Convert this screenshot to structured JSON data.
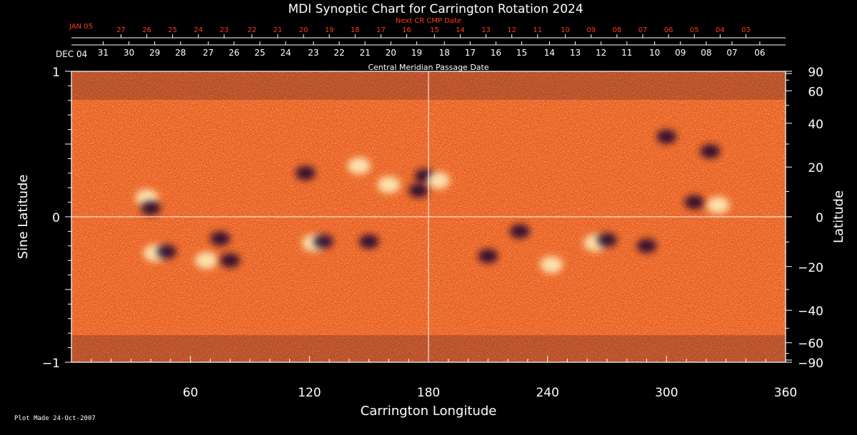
{
  "chart_data": {
    "type": "heatmap",
    "title": "MDI Synoptic Chart for Carrington Rotation 2024",
    "xlabel": "Carrington Longitude",
    "ylabel_left": "Sine Latitude",
    "ylabel_right": "Latitude",
    "xlim": [
      0,
      360
    ],
    "ylim": [
      -1,
      1
    ],
    "x_ticks": [
      60,
      120,
      180,
      240,
      300,
      360
    ],
    "y_ticks_left": [
      {
        "value": 1,
        "label": "1"
      },
      {
        "value": 0,
        "label": "0"
      },
      {
        "value": -1,
        "label": "−1"
      }
    ],
    "y_ticks_right": [
      {
        "deg": 90,
        "label": "90"
      },
      {
        "deg": 60,
        "label": "60"
      },
      {
        "deg": 40,
        "label": "40"
      },
      {
        "deg": 20,
        "label": "20"
      },
      {
        "deg": 0,
        "label": "0"
      },
      {
        "deg": -20,
        "label": "−20"
      },
      {
        "deg": -40,
        "label": "−40"
      },
      {
        "deg": -60,
        "label": "−60"
      },
      {
        "deg": -90,
        "label": "−90"
      }
    ],
    "cmp_axis": {
      "label": "Central Meridian Passage Date",
      "start_label": "DEC 04",
      "dates": [
        {
          "lon": 16,
          "label": "31"
        },
        {
          "lon": 29,
          "label": "30"
        },
        {
          "lon": 42,
          "label": "29"
        },
        {
          "lon": 55,
          "label": "28"
        },
        {
          "lon": 69,
          "label": "27"
        },
        {
          "lon": 82,
          "label": "26"
        },
        {
          "lon": 95,
          "label": "25"
        },
        {
          "lon": 108,
          "label": "24"
        },
        {
          "lon": 122,
          "label": "23"
        },
        {
          "lon": 135,
          "label": "22"
        },
        {
          "lon": 148,
          "label": "21"
        },
        {
          "lon": 161,
          "label": "20"
        },
        {
          "lon": 174,
          "label": "19"
        },
        {
          "lon": 188,
          "label": "18"
        },
        {
          "lon": 201,
          "label": "17"
        },
        {
          "lon": 214,
          "label": "16"
        },
        {
          "lon": 227,
          "label": "15"
        },
        {
          "lon": 241,
          "label": "14"
        },
        {
          "lon": 254,
          "label": "13"
        },
        {
          "lon": 267,
          "label": "12"
        },
        {
          "lon": 280,
          "label": "11"
        },
        {
          "lon": 294,
          "label": "10"
        },
        {
          "lon": 307,
          "label": "09"
        },
        {
          "lon": 320,
          "label": "08"
        },
        {
          "lon": 333,
          "label": "07"
        },
        {
          "lon": 347,
          "label": "06"
        }
      ]
    },
    "next_cr_axis": {
      "label": "Next CR CMP Date",
      "start_label": "JAN 05",
      "color": "#ff3b1f",
      "dates": [
        {
          "lon": 25,
          "label": "27"
        },
        {
          "lon": 38,
          "label": "26"
        },
        {
          "lon": 51,
          "label": "25"
        },
        {
          "lon": 64,
          "label": "24"
        },
        {
          "lon": 77,
          "label": "23"
        },
        {
          "lon": 91,
          "label": "22"
        },
        {
          "lon": 104,
          "label": "21"
        },
        {
          "lon": 117,
          "label": "20"
        },
        {
          "lon": 130,
          "label": "19"
        },
        {
          "lon": 143,
          "label": "18"
        },
        {
          "lon": 156,
          "label": "17"
        },
        {
          "lon": 169,
          "label": "16"
        },
        {
          "lon": 183,
          "label": "15"
        },
        {
          "lon": 196,
          "label": "14"
        },
        {
          "lon": 209,
          "label": "13"
        },
        {
          "lon": 222,
          "label": "12"
        },
        {
          "lon": 235,
          "label": "11"
        },
        {
          "lon": 249,
          "label": "10"
        },
        {
          "lon": 262,
          "label": "09"
        },
        {
          "lon": 275,
          "label": "08"
        },
        {
          "lon": 288,
          "label": "07"
        },
        {
          "lon": 301,
          "label": "06"
        },
        {
          "lon": 314,
          "label": "05"
        },
        {
          "lon": 327,
          "label": "04"
        },
        {
          "lon": 340,
          "label": "03"
        }
      ]
    },
    "reference_lines": {
      "longitude": 180,
      "sine_latitude": 0
    },
    "colormap": [
      "#14002e",
      "#5a0000",
      "#b81e00",
      "#ff5a10",
      "#ffa040",
      "#fff4c0"
    ],
    "active_regions": [
      {
        "lon": 38,
        "sinlat": 0.13,
        "polarity": "positive"
      },
      {
        "lon": 40,
        "sinlat": 0.06,
        "polarity": "negative"
      },
      {
        "lon": 42,
        "sinlat": -0.25,
        "polarity": "positive"
      },
      {
        "lon": 48,
        "sinlat": -0.24,
        "polarity": "negative"
      },
      {
        "lon": 68,
        "sinlat": -0.3,
        "polarity": "positive"
      },
      {
        "lon": 80,
        "sinlat": -0.3,
        "polarity": "negative"
      },
      {
        "lon": 75,
        "sinlat": -0.15,
        "polarity": "negative"
      },
      {
        "lon": 118,
        "sinlat": 0.3,
        "polarity": "negative"
      },
      {
        "lon": 145,
        "sinlat": 0.35,
        "polarity": "positive"
      },
      {
        "lon": 160,
        "sinlat": 0.22,
        "polarity": "positive"
      },
      {
        "lon": 178,
        "sinlat": 0.28,
        "polarity": "negative"
      },
      {
        "lon": 175,
        "sinlat": 0.18,
        "polarity": "negative"
      },
      {
        "lon": 122,
        "sinlat": -0.18,
        "polarity": "positive"
      },
      {
        "lon": 127,
        "sinlat": -0.17,
        "polarity": "negative"
      },
      {
        "lon": 150,
        "sinlat": -0.17,
        "polarity": "negative"
      },
      {
        "lon": 185,
        "sinlat": 0.25,
        "polarity": "positive"
      },
      {
        "lon": 210,
        "sinlat": -0.27,
        "polarity": "negative"
      },
      {
        "lon": 226,
        "sinlat": -0.1,
        "polarity": "negative"
      },
      {
        "lon": 242,
        "sinlat": -0.33,
        "polarity": "positive"
      },
      {
        "lon": 264,
        "sinlat": -0.18,
        "polarity": "positive"
      },
      {
        "lon": 270,
        "sinlat": -0.16,
        "polarity": "negative"
      },
      {
        "lon": 290,
        "sinlat": -0.2,
        "polarity": "negative"
      },
      {
        "lon": 300,
        "sinlat": 0.55,
        "polarity": "negative"
      },
      {
        "lon": 322,
        "sinlat": 0.45,
        "polarity": "negative"
      },
      {
        "lon": 314,
        "sinlat": 0.1,
        "polarity": "negative"
      },
      {
        "lon": 326,
        "sinlat": 0.08,
        "polarity": "positive"
      }
    ]
  },
  "footer": {
    "plot_made": "Plot Made 24-Oct-2007"
  }
}
